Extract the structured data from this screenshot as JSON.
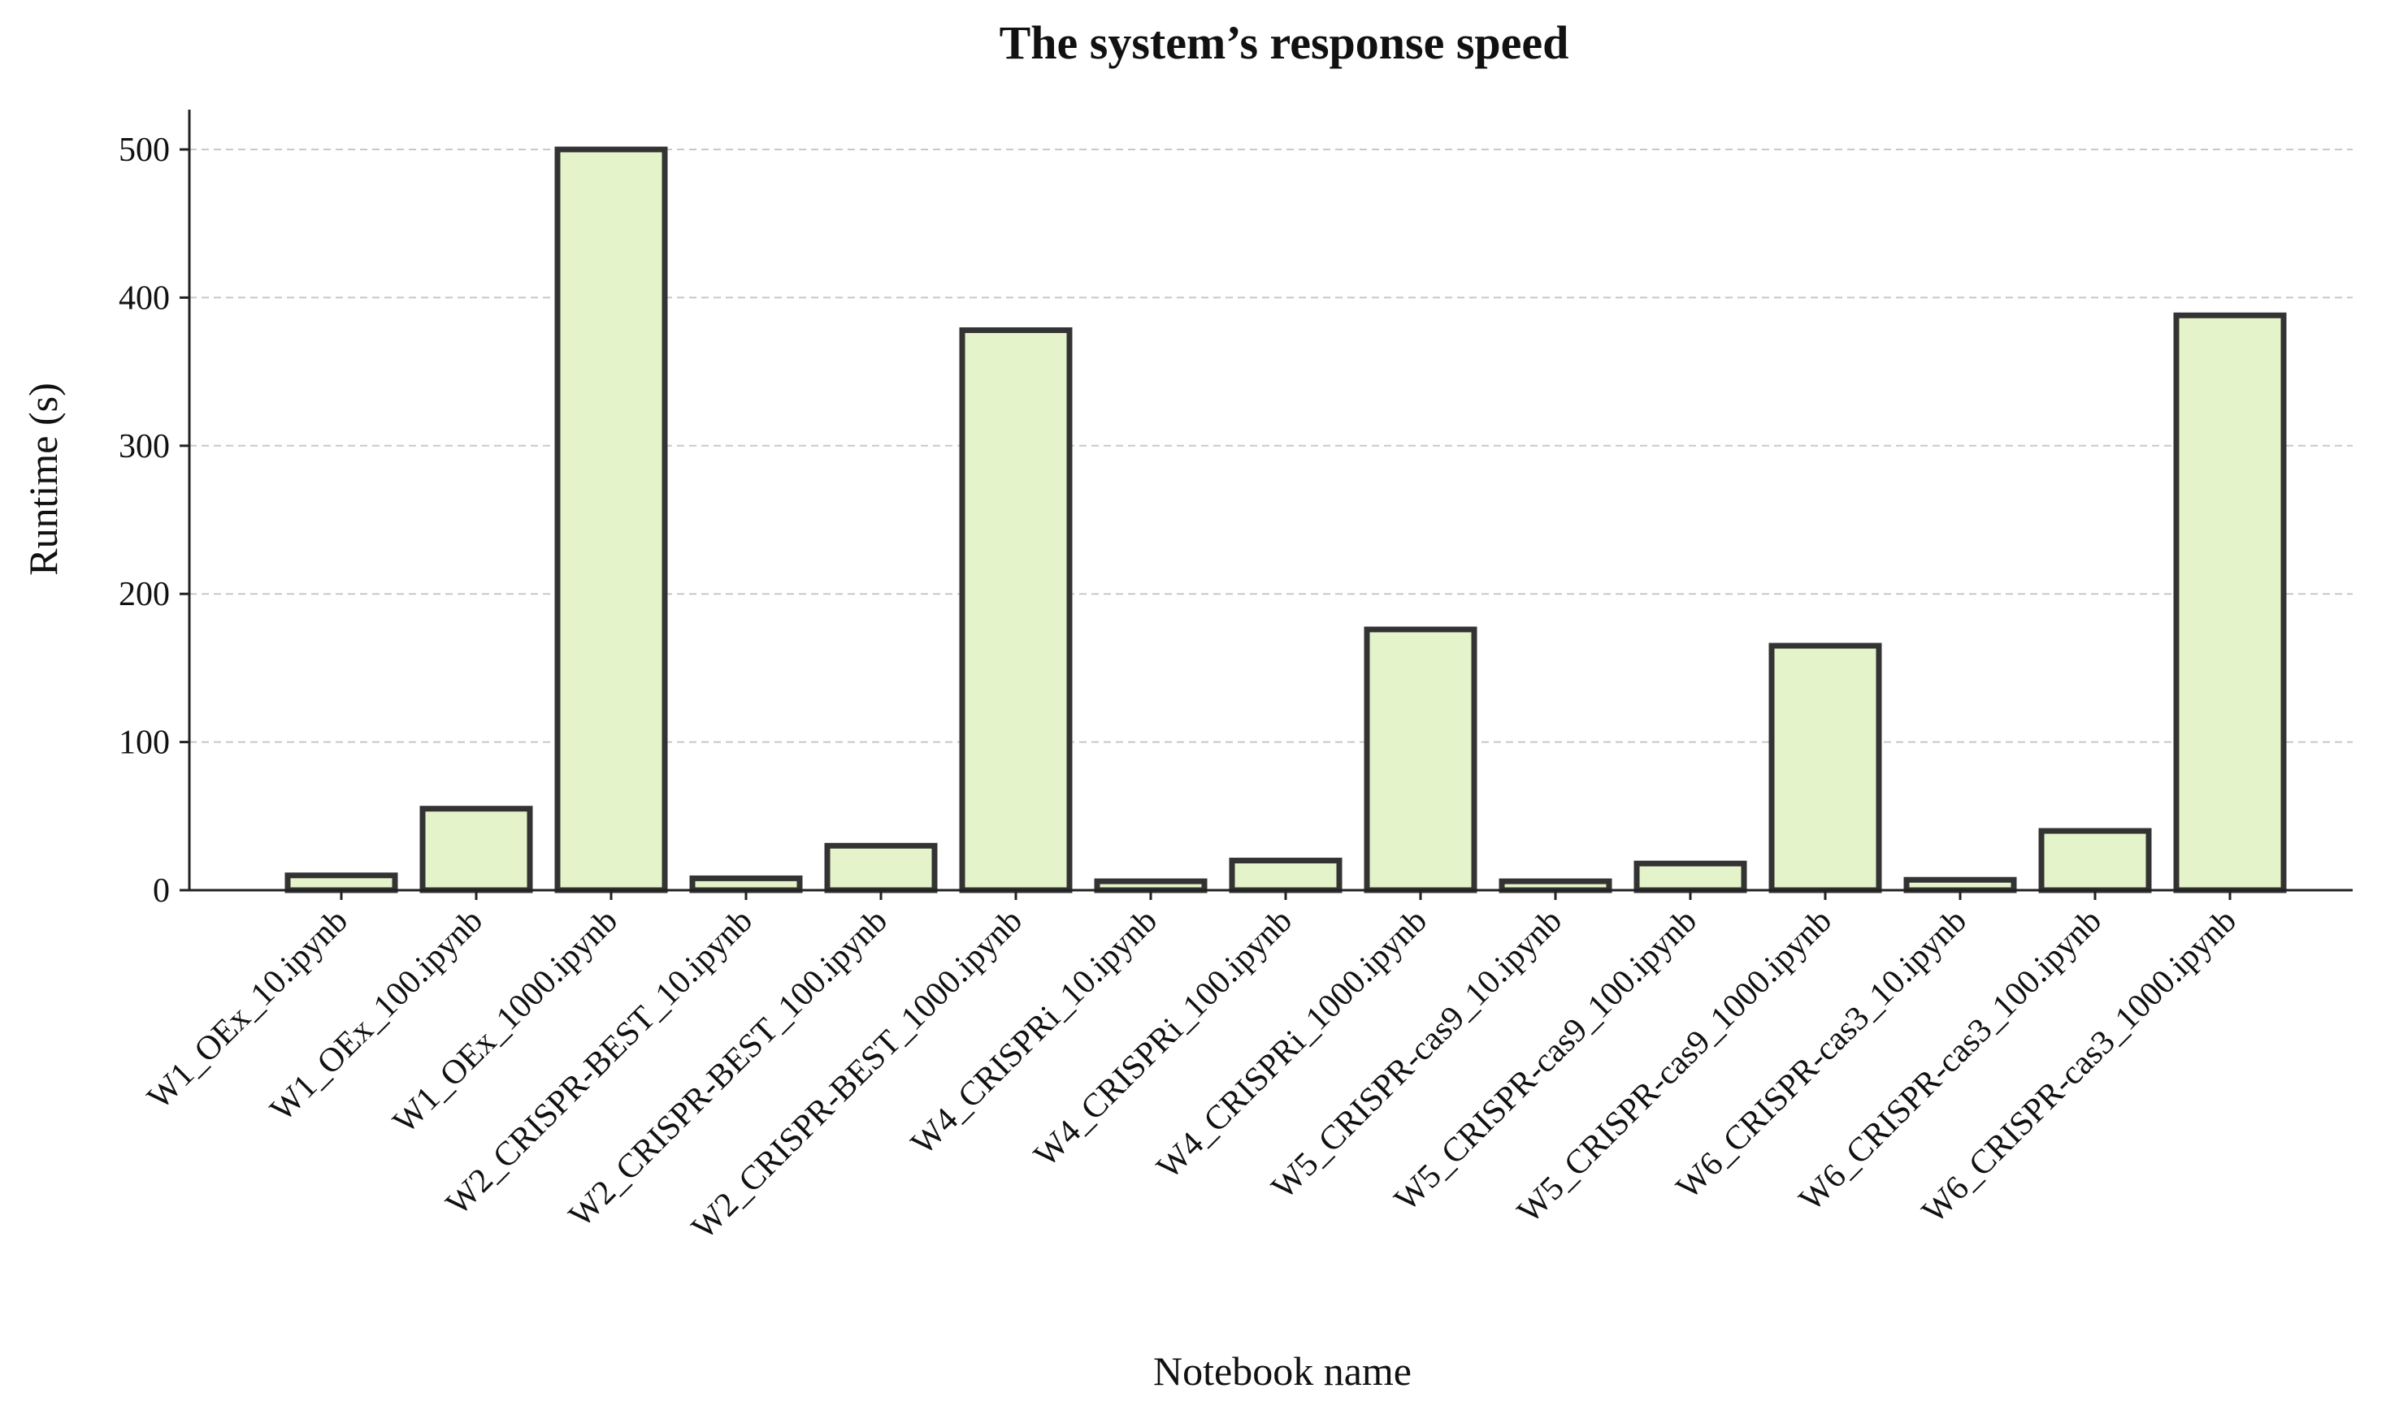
{
  "chart_data": {
    "type": "bar",
    "title": "The system’s response speed",
    "xlabel": "Notebook name",
    "ylabel": "Runtime (s)",
    "categories": [
      "W1_OEx_10.ipynb",
      "W1_OEx_100.ipynb",
      "W1_OEx_1000.ipynb",
      "W2_CRISPR-BEST_10.ipynb",
      "W2_CRISPR-BEST_100.ipynb",
      "W2_CRISPR-BEST_1000.ipynb",
      "W4_CRISPRi_10.ipynb",
      "W4_CRISPRi_100.ipynb",
      "W4_CRISPRi_1000.ipynb",
      "W5_CRISPR-cas9_10.ipynb",
      "W5_CRISPR-cas9_100.ipynb",
      "W5_CRISPR-cas9_1000.ipynb",
      "W6_CRISPR-cas3_10.ipynb",
      "W6_CRISPR-cas3_100.ipynb",
      "W6_CRISPR-cas3_1000.ipynb"
    ],
    "values": [
      10,
      55,
      500,
      8,
      30,
      378,
      6,
      20,
      176,
      6,
      18,
      165,
      7,
      40,
      388
    ],
    "ylim": [
      0,
      525
    ],
    "yticks": [
      0,
      100,
      200,
      300,
      400,
      500
    ],
    "grid": "horizontal dashed",
    "legend": "none",
    "colors": {
      "bar_fill": "#e4f3c9",
      "bar_edge": "#333333"
    }
  }
}
